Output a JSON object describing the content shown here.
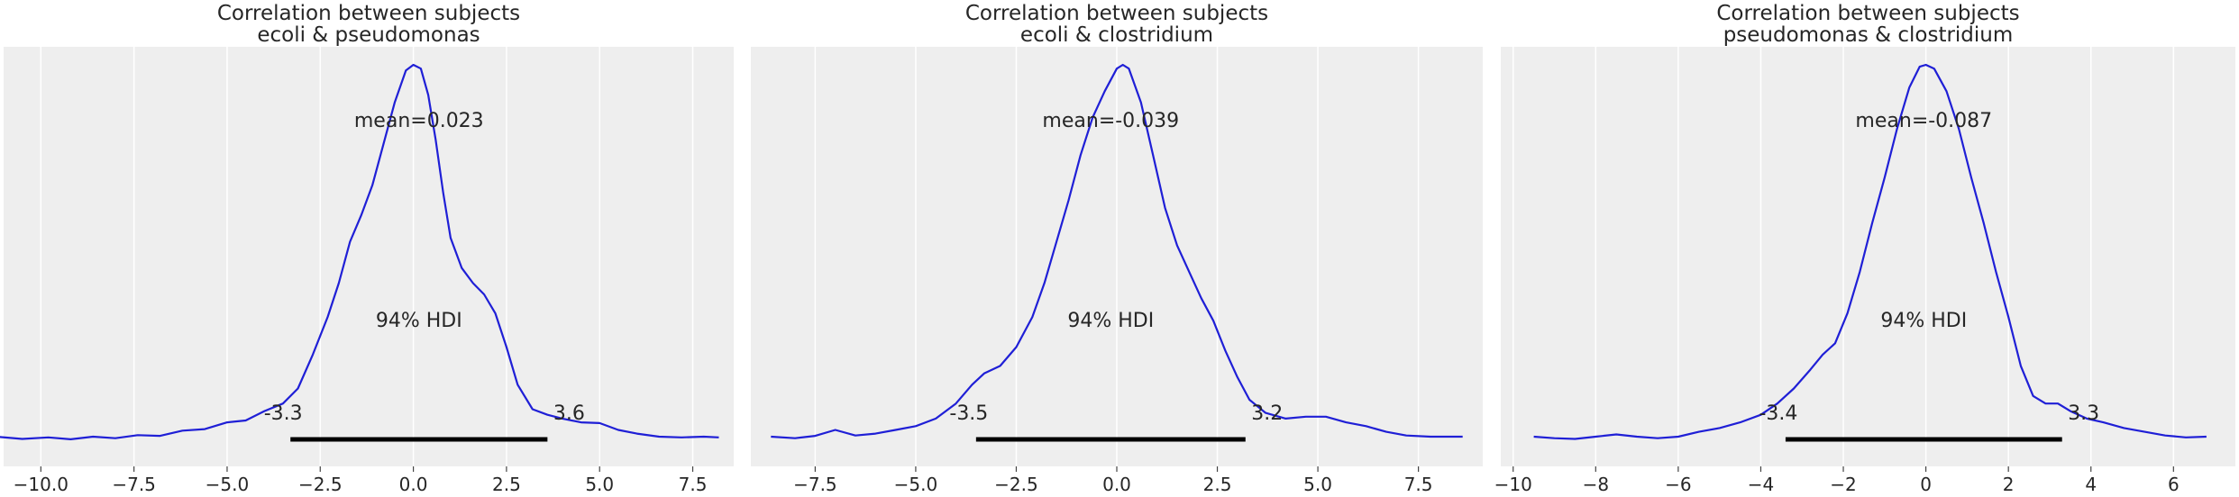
{
  "chart_data": [
    {
      "type": "kde",
      "title": [
        "Correlation between subjects",
        "ecoli & pseudomonas"
      ],
      "xlim": [
        -11.0,
        8.6
      ],
      "xticks": [
        -10.0,
        -7.5,
        -5.0,
        -2.5,
        0.0,
        2.5,
        5.0,
        7.5
      ],
      "xtick_labels": [
        "−10.0",
        "−7.5",
        "−5.0",
        "−2.5",
        "0.0",
        "2.5",
        "5.0",
        "7.5"
      ],
      "mean_label": "mean=0.023",
      "hdi_label": "94% HDI",
      "hdi": [
        -3.3,
        3.6
      ],
      "hdi_labels": [
        "-3.3",
        "3.6"
      ],
      "curve_color": "#1f1fd6",
      "density": [
        [
          -11.2,
          0.012
        ],
        [
          -10.5,
          0.006
        ],
        [
          -9.8,
          0.01
        ],
        [
          -9.2,
          0.005
        ],
        [
          -8.6,
          0.012
        ],
        [
          -8.0,
          0.008
        ],
        [
          -7.4,
          0.016
        ],
        [
          -6.8,
          0.014
        ],
        [
          -6.2,
          0.028
        ],
        [
          -5.6,
          0.032
        ],
        [
          -5.0,
          0.05
        ],
        [
          -4.5,
          0.055
        ],
        [
          -4.0,
          0.08
        ],
        [
          -3.5,
          0.1
        ],
        [
          -3.1,
          0.14
        ],
        [
          -2.7,
          0.23
        ],
        [
          -2.3,
          0.33
        ],
        [
          -2.0,
          0.42
        ],
        [
          -1.7,
          0.53
        ],
        [
          -1.4,
          0.6
        ],
        [
          -1.1,
          0.68
        ],
        [
          -0.8,
          0.79
        ],
        [
          -0.5,
          0.9
        ],
        [
          -0.2,
          0.985
        ],
        [
          0.0,
          1.0
        ],
        [
          0.2,
          0.99
        ],
        [
          0.4,
          0.92
        ],
        [
          0.6,
          0.8
        ],
        [
          0.8,
          0.66
        ],
        [
          1.0,
          0.54
        ],
        [
          1.3,
          0.46
        ],
        [
          1.6,
          0.42
        ],
        [
          1.9,
          0.39
        ],
        [
          2.2,
          0.34
        ],
        [
          2.5,
          0.25
        ],
        [
          2.8,
          0.15
        ],
        [
          3.2,
          0.085
        ],
        [
          3.6,
          0.07
        ],
        [
          4.0,
          0.06
        ],
        [
          4.5,
          0.05
        ],
        [
          5.0,
          0.048
        ],
        [
          5.5,
          0.03
        ],
        [
          6.0,
          0.02
        ],
        [
          6.6,
          0.012
        ],
        [
          7.2,
          0.01
        ],
        [
          7.8,
          0.012
        ],
        [
          8.2,
          0.01
        ]
      ]
    },
    {
      "type": "kde",
      "title": [
        "Correlation between subjects",
        "ecoli & clostridium"
      ],
      "xlim": [
        -9.1,
        9.1
      ],
      "xticks": [
        -7.5,
        -5.0,
        -2.5,
        0.0,
        2.5,
        5.0,
        7.5
      ],
      "xtick_labels": [
        "−7.5",
        "−5.0",
        "−2.5",
        "0.0",
        "2.5",
        "5.0",
        "7.5"
      ],
      "mean_label": "mean=-0.039",
      "hdi_label": "94% HDI",
      "hdi": [
        -3.5,
        3.2
      ],
      "hdi_labels": [
        "-3.5",
        "3.2"
      ],
      "curve_color": "#1f1fd6",
      "density": [
        [
          -8.6,
          0.012
        ],
        [
          -8.0,
          0.008
        ],
        [
          -7.5,
          0.014
        ],
        [
          -7.0,
          0.03
        ],
        [
          -6.5,
          0.015
        ],
        [
          -6.0,
          0.02
        ],
        [
          -5.5,
          0.03
        ],
        [
          -5.0,
          0.04
        ],
        [
          -4.5,
          0.06
        ],
        [
          -4.0,
          0.1
        ],
        [
          -3.6,
          0.15
        ],
        [
          -3.3,
          0.18
        ],
        [
          -2.9,
          0.2
        ],
        [
          -2.5,
          0.25
        ],
        [
          -2.1,
          0.33
        ],
        [
          -1.8,
          0.42
        ],
        [
          -1.5,
          0.53
        ],
        [
          -1.2,
          0.64
        ],
        [
          -0.9,
          0.76
        ],
        [
          -0.6,
          0.86
        ],
        [
          -0.3,
          0.93
        ],
        [
          0.0,
          0.99
        ],
        [
          0.15,
          1.0
        ],
        [
          0.3,
          0.99
        ],
        [
          0.6,
          0.9
        ],
        [
          0.9,
          0.76
        ],
        [
          1.2,
          0.62
        ],
        [
          1.5,
          0.52
        ],
        [
          1.8,
          0.45
        ],
        [
          2.1,
          0.38
        ],
        [
          2.4,
          0.32
        ],
        [
          2.7,
          0.24
        ],
        [
          3.0,
          0.17
        ],
        [
          3.3,
          0.11
        ],
        [
          3.7,
          0.075
        ],
        [
          4.2,
          0.06
        ],
        [
          4.7,
          0.065
        ],
        [
          5.2,
          0.065
        ],
        [
          5.7,
          0.05
        ],
        [
          6.2,
          0.04
        ],
        [
          6.7,
          0.025
        ],
        [
          7.2,
          0.015
        ],
        [
          7.8,
          0.012
        ],
        [
          8.6,
          0.012
        ]
      ]
    },
    {
      "type": "kde",
      "title": [
        "Correlation between subjects",
        "pseudomonas & clostridium"
      ],
      "xlim": [
        -10.3,
        7.5
      ],
      "xticks": [
        -10,
        -8,
        -6,
        -4,
        -2,
        0,
        2,
        4,
        6
      ],
      "xtick_labels": [
        "−10",
        "−8",
        "−6",
        "−4",
        "−2",
        "0",
        "2",
        "4",
        "6"
      ],
      "mean_label": "mean=-0.087",
      "hdi_label": "94% HDI",
      "hdi": [
        -3.4,
        3.3
      ],
      "hdi_labels": [
        "-3.4",
        "3.3"
      ],
      "curve_color": "#1f1fd6",
      "density": [
        [
          -9.5,
          0.012
        ],
        [
          -9.0,
          0.008
        ],
        [
          -8.5,
          0.006
        ],
        [
          -8.0,
          0.012
        ],
        [
          -7.5,
          0.018
        ],
        [
          -7.0,
          0.012
        ],
        [
          -6.5,
          0.008
        ],
        [
          -6.0,
          0.012
        ],
        [
          -5.5,
          0.025
        ],
        [
          -5.0,
          0.035
        ],
        [
          -4.5,
          0.05
        ],
        [
          -4.0,
          0.07
        ],
        [
          -3.6,
          0.1
        ],
        [
          -3.2,
          0.14
        ],
        [
          -2.8,
          0.19
        ],
        [
          -2.5,
          0.23
        ],
        [
          -2.2,
          0.26
        ],
        [
          -1.9,
          0.34
        ],
        [
          -1.6,
          0.45
        ],
        [
          -1.3,
          0.58
        ],
        [
          -1.0,
          0.7
        ],
        [
          -0.7,
          0.83
        ],
        [
          -0.4,
          0.94
        ],
        [
          -0.15,
          0.995
        ],
        [
          0.0,
          1.0
        ],
        [
          0.2,
          0.99
        ],
        [
          0.5,
          0.93
        ],
        [
          0.8,
          0.83
        ],
        [
          1.1,
          0.7
        ],
        [
          1.4,
          0.58
        ],
        [
          1.7,
          0.45
        ],
        [
          2.0,
          0.33
        ],
        [
          2.3,
          0.2
        ],
        [
          2.6,
          0.12
        ],
        [
          2.9,
          0.1
        ],
        [
          3.2,
          0.1
        ],
        [
          3.5,
          0.08
        ],
        [
          3.9,
          0.06
        ],
        [
          4.3,
          0.05
        ],
        [
          4.8,
          0.035
        ],
        [
          5.3,
          0.025
        ],
        [
          5.8,
          0.015
        ],
        [
          6.3,
          0.01
        ],
        [
          6.8,
          0.012
        ]
      ]
    }
  ]
}
